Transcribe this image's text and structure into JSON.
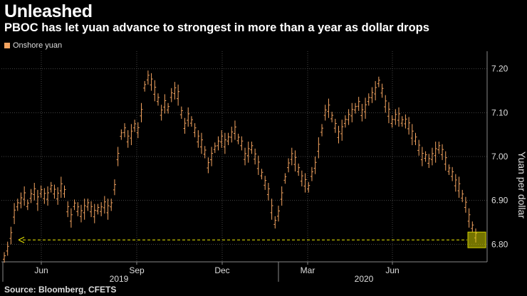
{
  "title": "Unleashed",
  "subtitle": "PBOC has let yuan advance to strongest in more than a year as dollar drops",
  "source": "Source: Bloomberg, CFETS",
  "colors": {
    "series": "#f4a460",
    "annotation": "#d4d100",
    "grid": "#444444"
  },
  "chart_data": {
    "type": "line",
    "legend_position": "top-left",
    "grid": true,
    "y_axis_side": "right",
    "xlabel": "",
    "ylabel": "Yuan per dollar",
    "ylim": [
      6.76,
      7.24
    ],
    "yticks": [
      6.8,
      6.9,
      7.0,
      7.1,
      7.2
    ],
    "ytick_labels": [
      "6.80",
      "6.90",
      "7.00",
      "7.10",
      "7.20"
    ],
    "x_month_ticks": [
      "Jun",
      "Sep",
      "Dec",
      "Mar",
      "Jun"
    ],
    "x_year_labels": [
      "2019",
      "2020"
    ],
    "annotation": {
      "type": "dashed-arrow-line",
      "value": 6.81,
      "highlight": "box at latest value"
    },
    "series": [
      {
        "name": "Onshore yuan",
        "values": [
          6.77,
          6.79,
          6.82,
          6.87,
          6.89,
          6.9,
          6.91,
          6.89,
          6.91,
          6.92,
          6.9,
          6.92,
          6.91,
          6.91,
          6.93,
          6.92,
          6.91,
          6.93,
          6.92,
          6.88,
          6.86,
          6.89,
          6.88,
          6.87,
          6.88,
          6.89,
          6.88,
          6.87,
          6.88,
          6.88,
          6.89,
          6.88,
          6.89,
          6.93,
          7.0,
          7.05,
          7.06,
          7.04,
          7.05,
          7.07,
          7.06,
          7.1,
          7.16,
          7.18,
          7.17,
          7.15,
          7.13,
          7.1,
          7.12,
          7.11,
          7.14,
          7.15,
          7.14,
          7.1,
          7.07,
          7.09,
          7.08,
          7.06,
          7.04,
          7.03,
          7.01,
          6.98,
          7.0,
          7.02,
          7.03,
          7.04,
          7.03,
          7.04,
          7.05,
          7.06,
          7.04,
          7.03,
          7.0,
          7.01,
          7.02,
          7.0,
          6.98,
          6.96,
          6.94,
          6.92,
          6.88,
          6.85,
          6.87,
          6.91,
          6.95,
          6.98,
          7.0,
          6.99,
          6.97,
          6.95,
          6.94,
          6.93,
          6.96,
          6.98,
          7.02,
          7.06,
          7.1,
          7.11,
          7.09,
          7.07,
          7.05,
          7.06,
          7.08,
          7.09,
          7.1,
          7.11,
          7.12,
          7.1,
          7.11,
          7.13,
          7.14,
          7.15,
          7.17,
          7.15,
          7.12,
          7.1,
          7.08,
          7.09,
          7.09,
          7.08,
          7.08,
          7.07,
          7.05,
          7.04,
          7.02,
          7.0,
          7.0,
          6.99,
          7.0,
          7.01,
          7.02,
          7.01,
          6.99,
          6.97,
          6.96,
          6.94,
          6.93,
          6.91,
          6.89,
          6.86,
          6.84,
          6.82
        ]
      }
    ]
  }
}
